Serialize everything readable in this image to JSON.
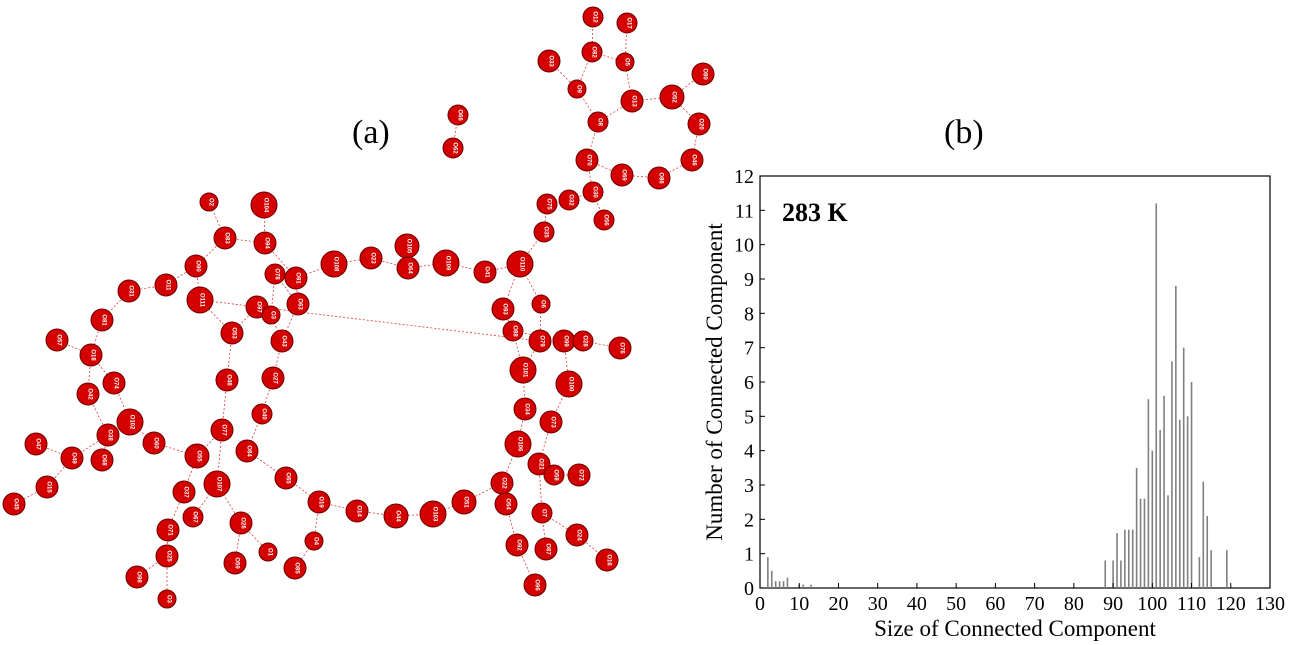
{
  "panels": {
    "a_label": "(a)",
    "b_label": "(b)"
  },
  "network": {
    "node_color": "#d40000",
    "nodes": [
      {
        "id": "O12",
        "label": "O12"
      },
      {
        "id": "O17",
        "label": "O17"
      },
      {
        "id": "O33",
        "label": "O33"
      },
      {
        "id": "O82",
        "label": "O82"
      },
      {
        "id": "O5",
        "label": "O5"
      },
      {
        "id": "O80",
        "label": "O80"
      },
      {
        "id": "O9",
        "label": "O9"
      },
      {
        "id": "O13",
        "label": "O13"
      },
      {
        "id": "O52",
        "label": "O52"
      },
      {
        "id": "O66",
        "label": "O66"
      },
      {
        "id": "O62",
        "label": "O62"
      },
      {
        "id": "O8",
        "label": "O8"
      },
      {
        "id": "O20",
        "label": "O20"
      },
      {
        "id": "O70",
        "label": "O70"
      },
      {
        "id": "O46",
        "label": "O46"
      },
      {
        "id": "O69",
        "label": "O69"
      },
      {
        "id": "O86",
        "label": "O86"
      },
      {
        "id": "O30",
        "label": "O30"
      },
      {
        "id": "O75",
        "label": "O75"
      },
      {
        "id": "O32",
        "label": "O32"
      },
      {
        "id": "O56",
        "label": "O56"
      },
      {
        "id": "O35",
        "label": "O35"
      },
      {
        "id": "O2",
        "label": "O2"
      },
      {
        "id": "O104",
        "label": "O104"
      },
      {
        "id": "O83",
        "label": "O83"
      },
      {
        "id": "O94",
        "label": "O94"
      },
      {
        "id": "O105",
        "label": "O105"
      },
      {
        "id": "O23",
        "label": "O23"
      },
      {
        "id": "O108",
        "label": "O108"
      },
      {
        "id": "O64",
        "label": "O64"
      },
      {
        "id": "O109",
        "label": "O109"
      },
      {
        "id": "O41",
        "label": "O41"
      },
      {
        "id": "O110",
        "label": "O110"
      },
      {
        "id": "O90",
        "label": "O90"
      },
      {
        "id": "O78",
        "label": "O78"
      },
      {
        "id": "O91",
        "label": "O91"
      },
      {
        "id": "O11",
        "label": "O11"
      },
      {
        "id": "O31",
        "label": "O31"
      },
      {
        "id": "O111",
        "label": "O111"
      },
      {
        "id": "O97",
        "label": "O97"
      },
      {
        "id": "O3",
        "label": "O3"
      },
      {
        "id": "O63",
        "label": "O63"
      },
      {
        "id": "O93",
        "label": "O93"
      },
      {
        "id": "O6",
        "label": "O6"
      },
      {
        "id": "O81",
        "label": "O81"
      },
      {
        "id": "O79",
        "label": "O79"
      },
      {
        "id": "O53",
        "label": "O53"
      },
      {
        "id": "O57",
        "label": "O57"
      },
      {
        "id": "O43",
        "label": "O43"
      },
      {
        "id": "O88",
        "label": "O88"
      },
      {
        "id": "O99",
        "label": "O99"
      },
      {
        "id": "O28",
        "label": "O28"
      },
      {
        "id": "O76",
        "label": "O76"
      },
      {
        "id": "O18",
        "label": "O18"
      },
      {
        "id": "O74",
        "label": "O74"
      },
      {
        "id": "O48",
        "label": "O48"
      },
      {
        "id": "O27",
        "label": "O27"
      },
      {
        "id": "O101",
        "label": "O101"
      },
      {
        "id": "O100",
        "label": "O100"
      },
      {
        "id": "O42",
        "label": "O42"
      },
      {
        "id": "O102",
        "label": "O102"
      },
      {
        "id": "O34",
        "label": "O34"
      },
      {
        "id": "O40",
        "label": "O40"
      },
      {
        "id": "O73",
        "label": "O73"
      },
      {
        "id": "O38",
        "label": "O38"
      },
      {
        "id": "O77",
        "label": "O77"
      },
      {
        "id": "O47",
        "label": "O47"
      },
      {
        "id": "O60",
        "label": "O60"
      },
      {
        "id": "O84",
        "label": "O84"
      },
      {
        "id": "O106",
        "label": "O106"
      },
      {
        "id": "O49",
        "label": "O49"
      },
      {
        "id": "O68",
        "label": "O68"
      },
      {
        "id": "O55",
        "label": "O55"
      },
      {
        "id": "O21",
        "label": "O21"
      },
      {
        "id": "O58",
        "label": "O58"
      },
      {
        "id": "O72",
        "label": "O72"
      },
      {
        "id": "O15",
        "label": "O15"
      },
      {
        "id": "O107",
        "label": "O107"
      },
      {
        "id": "O65",
        "label": "O65"
      },
      {
        "id": "O22",
        "label": "O22"
      },
      {
        "id": "O37",
        "label": "O37"
      },
      {
        "id": "O45",
        "label": "O45"
      },
      {
        "id": "O19",
        "label": "O19"
      },
      {
        "id": "O51",
        "label": "O51"
      },
      {
        "id": "O54",
        "label": "O54"
      },
      {
        "id": "O67",
        "label": "O67"
      },
      {
        "id": "O14",
        "label": "O14"
      },
      {
        "id": "O44",
        "label": "O44"
      },
      {
        "id": "O103",
        "label": "O103"
      },
      {
        "id": "O7",
        "label": "O7"
      },
      {
        "id": "O26",
        "label": "O26"
      },
      {
        "id": "O71",
        "label": "O71"
      },
      {
        "id": "O24",
        "label": "O24"
      },
      {
        "id": "O4",
        "label": "O4"
      },
      {
        "id": "O92",
        "label": "O92"
      },
      {
        "id": "O87",
        "label": "O87"
      },
      {
        "id": "O25",
        "label": "O25"
      },
      {
        "id": "O1",
        "label": "O1"
      },
      {
        "id": "O59",
        "label": "O59"
      },
      {
        "id": "O16",
        "label": "O16"
      },
      {
        "id": "O85",
        "label": "O85"
      },
      {
        "id": "O98",
        "label": "O98"
      },
      {
        "id": "O96",
        "label": "O96"
      },
      {
        "id": "O3b",
        "label": "O3"
      }
    ],
    "edges": [
      [
        "O12",
        "O82"
      ],
      [
        "O17",
        "O5"
      ],
      [
        "O82",
        "O5"
      ],
      [
        "O33",
        "O9"
      ],
      [
        "O82",
        "O9"
      ],
      [
        "O5",
        "O13"
      ],
      [
        "O80",
        "O52"
      ],
      [
        "O52",
        "O13"
      ],
      [
        "O13",
        "O8"
      ],
      [
        "O9",
        "O8"
      ],
      [
        "O52",
        "O20"
      ],
      [
        "O66",
        "O62"
      ],
      [
        "O8",
        "O70"
      ],
      [
        "O20",
        "O46"
      ],
      [
        "O46",
        "O86"
      ],
      [
        "O86",
        "O69"
      ],
      [
        "O70",
        "O69"
      ],
      [
        "O70",
        "O30"
      ],
      [
        "O30",
        "O56"
      ],
      [
        "O30",
        "O32"
      ],
      [
        "O32",
        "O75"
      ],
      [
        "O75",
        "O35"
      ],
      [
        "O35",
        "O110"
      ],
      [
        "O2",
        "O83"
      ],
      [
        "O104",
        "O94"
      ],
      [
        "O83",
        "O94"
      ],
      [
        "O94",
        "O91"
      ],
      [
        "O105",
        "O64"
      ],
      [
        "O108",
        "O23"
      ],
      [
        "O23",
        "O64"
      ],
      [
        "O64",
        "O109"
      ],
      [
        "O109",
        "O41"
      ],
      [
        "O41",
        "O110"
      ],
      [
        "O110",
        "O93"
      ],
      [
        "O110",
        "O6"
      ],
      [
        "O108",
        "O91"
      ],
      [
        "O83",
        "O90"
      ],
      [
        "O90",
        "O111"
      ],
      [
        "O90",
        "O11"
      ],
      [
        "O11",
        "O31"
      ],
      [
        "O31",
        "O81"
      ],
      [
        "O78",
        "O3"
      ],
      [
        "O78",
        "O63"
      ],
      [
        "O91",
        "O63"
      ],
      [
        "O111",
        "O79"
      ],
      [
        "O111",
        "O53"
      ],
      [
        "O97",
        "O53"
      ],
      [
        "O63",
        "O43"
      ],
      [
        "O3",
        "O43"
      ],
      [
        "O93",
        "O88"
      ],
      [
        "O6",
        "O79"
      ],
      [
        "O88",
        "O101"
      ],
      [
        "O79",
        "O101"
      ],
      [
        "O99",
        "O28"
      ],
      [
        "O28",
        "O76"
      ],
      [
        "O99",
        "O100"
      ],
      [
        "O81",
        "O18"
      ],
      [
        "O57",
        "O18"
      ],
      [
        "O18",
        "O42"
      ],
      [
        "O18",
        "O74"
      ],
      [
        "O43",
        "O27"
      ],
      [
        "O27",
        "O40"
      ],
      [
        "O53",
        "O48"
      ],
      [
        "O48",
        "O77"
      ],
      [
        "O101",
        "O34"
      ],
      [
        "O100",
        "O73"
      ],
      [
        "O42",
        "O38"
      ],
      [
        "O74",
        "O102"
      ],
      [
        "O102",
        "O60"
      ],
      [
        "O40",
        "O84"
      ],
      [
        "O34",
        "O106"
      ],
      [
        "O73",
        "O21"
      ],
      [
        "O38",
        "O68"
      ],
      [
        "O38",
        "O49"
      ],
      [
        "O47",
        "O49"
      ],
      [
        "O60",
        "O55"
      ],
      [
        "O77",
        "O55"
      ],
      [
        "O77",
        "O107"
      ],
      [
        "O84",
        "O65"
      ],
      [
        "O106",
        "O22"
      ],
      [
        "O21",
        "O58"
      ],
      [
        "O58",
        "O72"
      ],
      [
        "O21",
        "O7"
      ],
      [
        "O49",
        "O15"
      ],
      [
        "O55",
        "O37"
      ],
      [
        "O107",
        "O67"
      ],
      [
        "O107",
        "O26"
      ],
      [
        "O65",
        "O19"
      ],
      [
        "O22",
        "O54"
      ],
      [
        "O22",
        "O51"
      ],
      [
        "O15",
        "O45"
      ],
      [
        "O37",
        "O71"
      ],
      [
        "O19",
        "O14"
      ],
      [
        "O14",
        "O44"
      ],
      [
        "O44",
        "O103"
      ],
      [
        "O103",
        "O51"
      ],
      [
        "O54",
        "O92"
      ],
      [
        "O7",
        "O87"
      ],
      [
        "O7",
        "O24"
      ],
      [
        "O71",
        "O25"
      ],
      [
        "O26",
        "O1"
      ],
      [
        "O26",
        "O59"
      ],
      [
        "O19",
        "O4"
      ],
      [
        "O24",
        "O16"
      ],
      [
        "O4",
        "O85"
      ],
      [
        "O25",
        "O98"
      ],
      [
        "O92",
        "O96"
      ],
      [
        "O25",
        "O3b"
      ],
      [
        "O88",
        "O99"
      ]
    ]
  },
  "chart_data": {
    "type": "bar",
    "annotation": "283 K",
    "xlabel": "Size of Connected Component",
    "ylabel": "Number of Connected Component",
    "xlim": [
      0,
      130
    ],
    "ylim": [
      0,
      12
    ],
    "xticks": [
      0,
      10,
      20,
      30,
      40,
      50,
      60,
      70,
      80,
      90,
      100,
      110,
      120,
      130
    ],
    "yticks": [
      0,
      1,
      2,
      3,
      4,
      5,
      6,
      7,
      8,
      9,
      10,
      11,
      12
    ],
    "bar_color": "#808080",
    "x": [
      2,
      3,
      4,
      5,
      6,
      7,
      10,
      11,
      13,
      88,
      90,
      91,
      92,
      93,
      94,
      95,
      96,
      97,
      98,
      99,
      100,
      101,
      102,
      103,
      104,
      105,
      106,
      107,
      108,
      109,
      110,
      112,
      113,
      114,
      115,
      119
    ],
    "values": [
      0.9,
      0.5,
      0.2,
      0.2,
      0.2,
      0.3,
      0.1,
      0.1,
      0.1,
      0.8,
      0.8,
      1.6,
      0.8,
      1.7,
      1.7,
      1.7,
      3.5,
      2.6,
      2.6,
      5.5,
      4.0,
      11.2,
      4.6,
      5.6,
      2.7,
      6.6,
      8.8,
      4.9,
      7.0,
      5.0,
      6.0,
      0.9,
      3.1,
      2.1,
      1.1,
      1.1
    ]
  }
}
